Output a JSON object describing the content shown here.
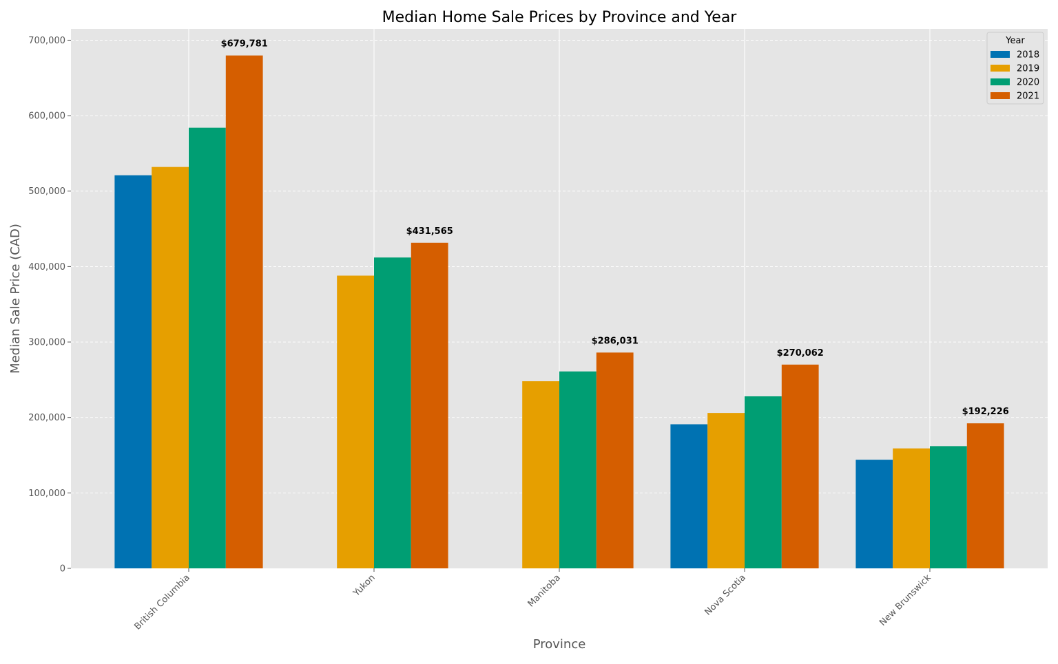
{
  "chart_data": {
    "type": "bar",
    "title": "Median Home Sale Prices by Province and Year",
    "xlabel": "Province",
    "ylabel": "Median Sale Price (CAD)",
    "ylim": [
      0,
      715000
    ],
    "yticks": [
      0,
      100000,
      200000,
      300000,
      400000,
      500000,
      600000,
      700000
    ],
    "ytick_labels": [
      "0",
      "100,000",
      "200,000",
      "300,000",
      "400,000",
      "500,000",
      "600,000",
      "700,000"
    ],
    "grid": true,
    "legend": {
      "title": "Year",
      "placement": "top-right"
    },
    "categories": [
      "British Columbia",
      "Yukon",
      "Manitoba",
      "Nova Scotia",
      "New Brunswick"
    ],
    "series": [
      {
        "name": "2018",
        "color": "#0072B2",
        "values": [
          521000,
          null,
          null,
          191000,
          144000
        ]
      },
      {
        "name": "2019",
        "color": "#E69F00",
        "values": [
          532000,
          388000,
          248000,
          206000,
          159000
        ]
      },
      {
        "name": "2020",
        "color": "#009E73",
        "values": [
          584000,
          412000,
          261000,
          228000,
          162000
        ]
      },
      {
        "name": "2021",
        "color": "#D55E00",
        "values": [
          679781,
          431565,
          286031,
          270062,
          192226
        ]
      }
    ],
    "annotations": [
      {
        "category": "British Columbia",
        "series": "2021",
        "text": "$679,781"
      },
      {
        "category": "Yukon",
        "series": "2021",
        "text": "$431,565"
      },
      {
        "category": "Manitoba",
        "series": "2021",
        "text": "$286,031"
      },
      {
        "category": "Nova Scotia",
        "series": "2021",
        "text": "$270,062"
      },
      {
        "category": "New Brunswick",
        "series": "2021",
        "text": "$192,226"
      }
    ]
  }
}
